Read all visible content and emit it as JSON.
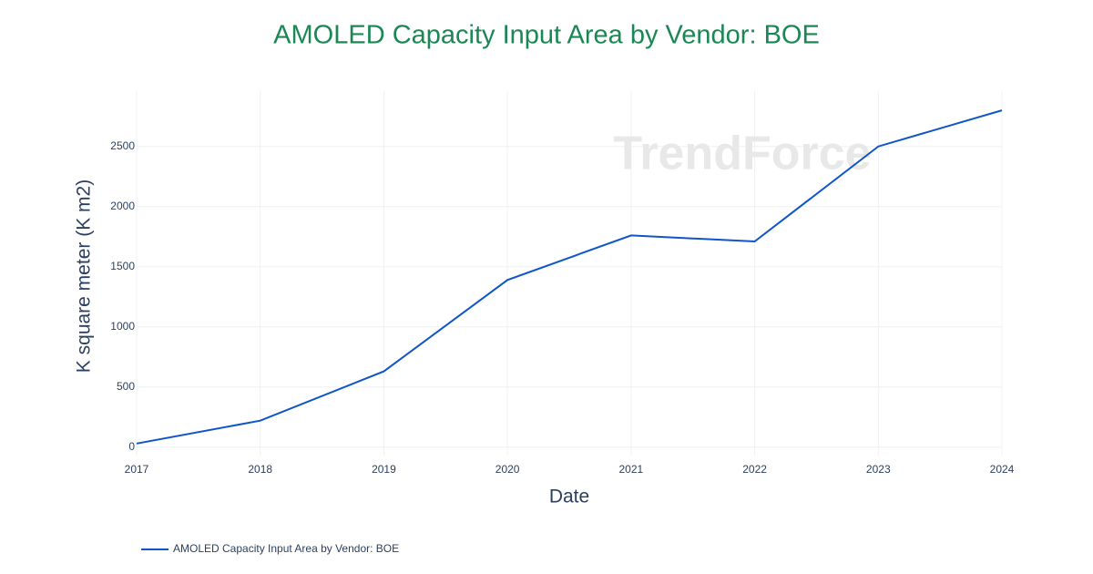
{
  "chart_data": {
    "type": "line",
    "title": "AMOLED Capacity Input Area by Vendor: BOE",
    "x_label": "Date",
    "y_label": "K square meter (K m2)",
    "watermark": "TrendForce",
    "x": [
      "2017",
      "2018",
      "2019",
      "2020",
      "2021",
      "2022",
      "2023",
      "2024"
    ],
    "series": [
      {
        "name": "AMOLED Capacity Input Area by Vendor: BOE",
        "color": "#0f55c8",
        "values": [
          30,
          220,
          630,
          1390,
          1760,
          1710,
          2500,
          2800
        ]
      }
    ],
    "ylim": [
      -70,
      2960
    ],
    "yticks": [
      0,
      500,
      1000,
      1500,
      2000,
      2500
    ],
    "grid": true,
    "legend": "bottom-left"
  }
}
